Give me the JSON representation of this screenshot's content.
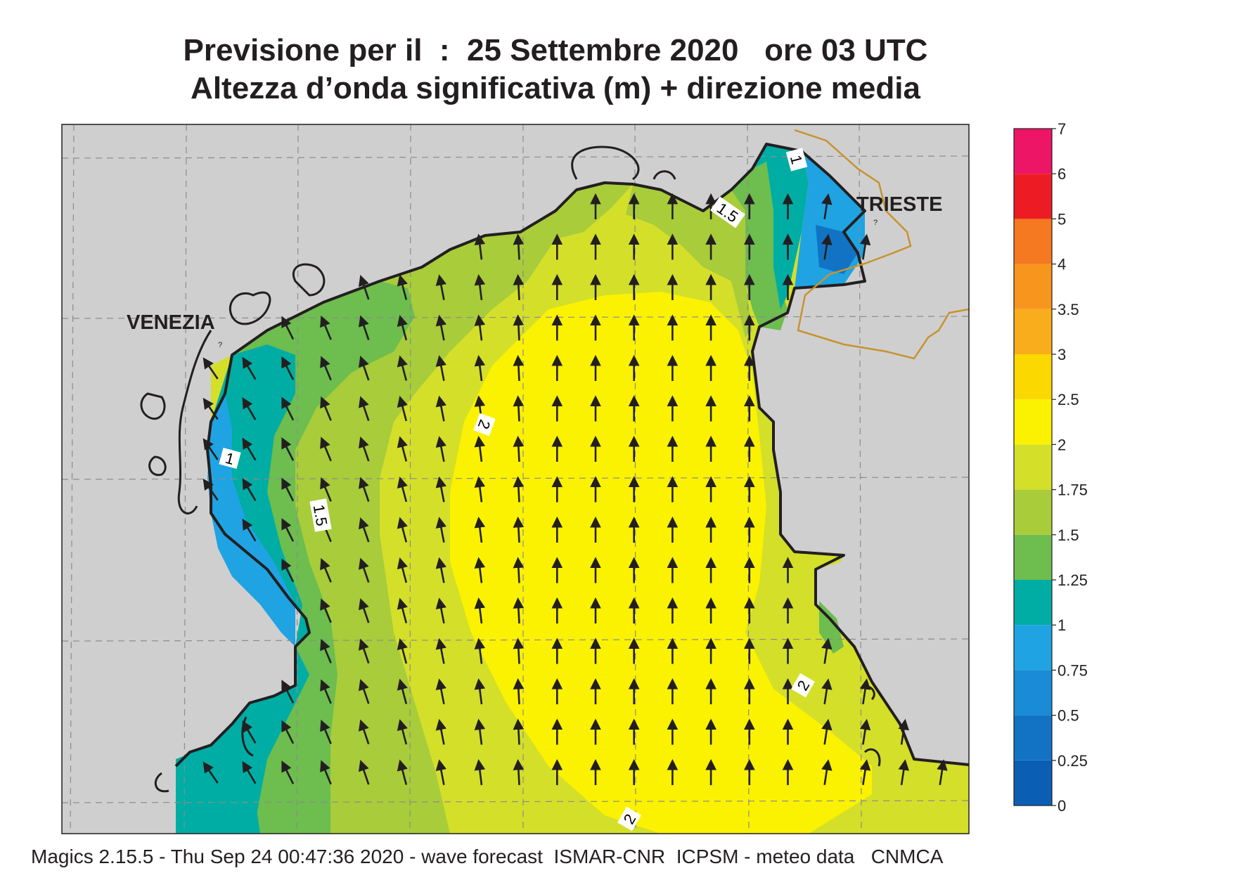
{
  "header": {
    "line1": "Previsione per il  :  25 Settembre 2020   ore 03 UTC",
    "line2": "Altezza d’onda significativa (m) + direzione media"
  },
  "places": {
    "venezia": "VENEZIA",
    "trieste": "TRIESTE",
    "unknown_marker": "?"
  },
  "contour_labels": [
    "1",
    "1.5",
    "2"
  ],
  "legend": {
    "ticks": [
      "0",
      "0.25",
      "0.5",
      "0.75",
      "1",
      "1.25",
      "1.5",
      "1.75",
      "2",
      "2.5",
      "3",
      "3.5",
      "4",
      "5",
      "6",
      "7"
    ],
    "colors": [
      "#0a5fb4",
      "#1273c5",
      "#1a8bd6",
      "#1fa3e3",
      "#00ada4",
      "#6dbd4f",
      "#a8cc3a",
      "#d4df2a",
      "#faf200",
      "#fad800",
      "#f9ad1c",
      "#f7951d",
      "#f47920",
      "#ed1c24",
      "#ec1566"
    ]
  },
  "field": {
    "variable": "significant wave height (m)",
    "direction": "mean wave direction",
    "dominant_direction": "towards north",
    "max_band": "2–2.5 m"
  },
  "footer": "Magics 2.15.5 - Thu Sep 24 00:47:36 2020 - wave forecast  ISMAR-CNR  ICPSM - meteo data   CNMCA"
}
